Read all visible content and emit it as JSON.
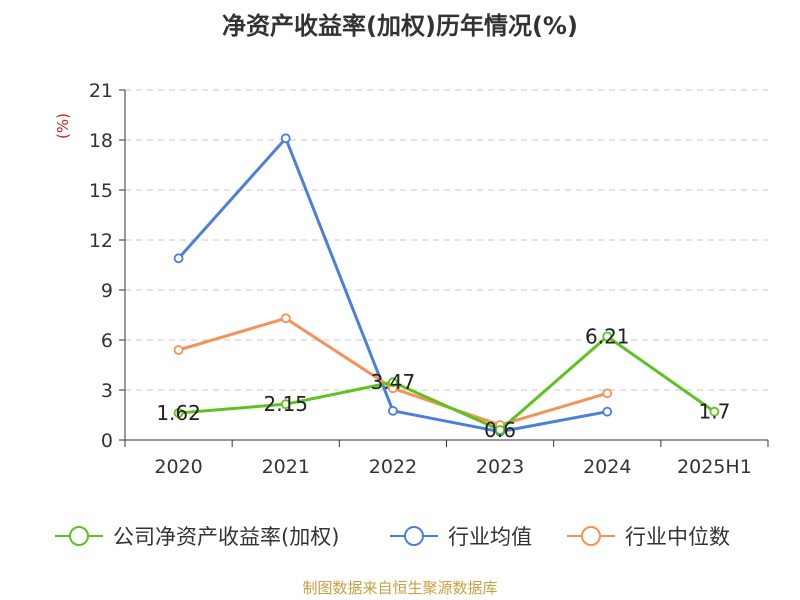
{
  "chart_data": {
    "type": "line",
    "title": "净资产收益率(加权)历年情况(%)",
    "ylabel": "(%)",
    "xlabel": "",
    "categories": [
      "2020",
      "2021",
      "2022",
      "2023",
      "2024",
      "2025H1"
    ],
    "ylim": [
      0,
      21
    ],
    "yticks": [
      0,
      3,
      6,
      9,
      12,
      15,
      18,
      21
    ],
    "grid": true,
    "legend_position": "bottom",
    "series": [
      {
        "name": "公司净资产收益率(加权)",
        "color": "#5cc31f",
        "values": [
          1.62,
          2.15,
          3.47,
          0.6,
          6.21,
          1.7
        ],
        "labels": [
          "1.62",
          "2.15",
          "3.47",
          "0.6",
          "6.21",
          "1.7"
        ]
      },
      {
        "name": "行业均值",
        "color": "#4a7fdc",
        "values": [
          10.9,
          18.1,
          1.75,
          0.5,
          1.7,
          null
        ]
      },
      {
        "name": "行业中位数",
        "color": "#f5925a",
        "values": [
          5.4,
          7.3,
          3.1,
          0.9,
          2.8,
          null
        ]
      }
    ]
  },
  "footer": {
    "source": "制图数据来自恒生聚源数据库"
  }
}
